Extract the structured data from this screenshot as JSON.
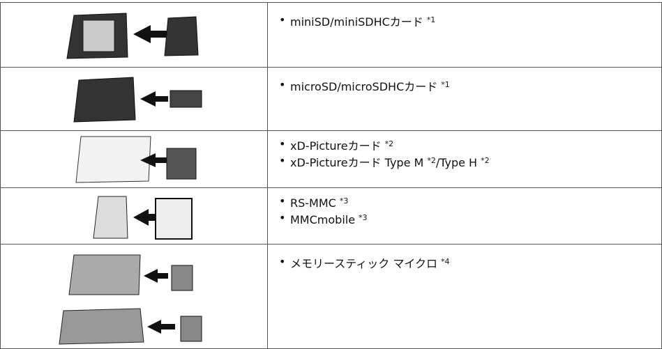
{
  "table": {
    "rows": [
      {
        "items": [
          [
            {
              "text": "miniSD/miniSDHCカード",
              "note": "*1"
            }
          ]
        ]
      },
      {
        "items": [
          [
            {
              "text": "microSD/microSDHCカード",
              "note": "*1"
            }
          ]
        ]
      },
      {
        "items": [
          [
            {
              "text": "xD-Pictureカード",
              "note": "*2"
            }
          ],
          [
            {
              "text": "xD-Pictureカード Type M",
              "note": "*2"
            },
            {
              "text": "/Type H",
              "note": "*2"
            }
          ]
        ]
      },
      {
        "items": [
          [
            {
              "text": "RS-MMC",
              "note": "*3"
            }
          ],
          [
            {
              "text": "MMCmobile",
              "note": "*3"
            }
          ]
        ]
      },
      {
        "items": [
          [
            {
              "text": "メモリースティック マイクロ",
              "note": "*4"
            }
          ]
        ]
      }
    ]
  }
}
